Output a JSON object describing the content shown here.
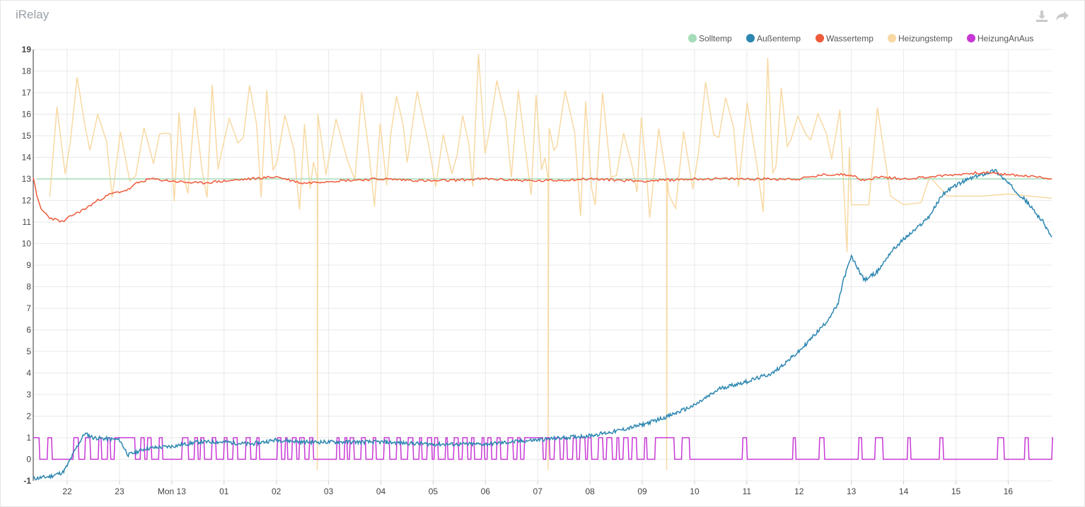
{
  "panel": {
    "title": "iRelay"
  },
  "toolbar": {
    "download_icon": "download-icon",
    "share_icon": "share-icon"
  },
  "colors": {
    "Solltemp": "#a6dcb9",
    "Außentemp": "#2b86b0",
    "Wassertemp": "#ee5a3a",
    "Heizungstemp": "#f8d9a3",
    "HeizungAnAus": "#c838d6",
    "grid": "#e9e9e9",
    "axis": "#000000"
  },
  "chart_data": {
    "type": "line",
    "title": "iRelay",
    "xlabel": "",
    "ylabel": "",
    "ylim": [
      -1,
      19
    ],
    "yticks": [
      "-1",
      "0",
      "1",
      "2",
      "3",
      "4",
      "5",
      "6",
      "7",
      "8",
      "9",
      "10",
      "11",
      "12",
      "13",
      "14",
      "15",
      "16",
      "17",
      "18",
      "19"
    ],
    "xlim": [
      "21:21",
      "16:50"
    ],
    "xticks": [
      "22",
      "23",
      "Mon 13",
      "01",
      "02",
      "03",
      "04",
      "05",
      "06",
      "07",
      "08",
      "09",
      "10",
      "11",
      "12",
      "13",
      "14",
      "15",
      "16"
    ],
    "grid": true,
    "legend_position": "top-right",
    "series": [
      {
        "name": "Solltemp",
        "x": [
          "21:25",
          "16:50"
        ],
        "values": [
          13,
          13
        ]
      },
      {
        "name": "Außentemp",
        "x": [
          "21:21",
          "21:40",
          "21:55",
          "22:00",
          "22:10",
          "22:20",
          "22:30",
          "23:00",
          "23:10",
          "23:30",
          "00:00",
          "00:30",
          "01:00",
          "01:30",
          "02:00",
          "02:30",
          "03:00",
          "04:00",
          "05:00",
          "06:00",
          "06:30",
          "07:00",
          "07:30",
          "08:00",
          "08:30",
          "09:00",
          "09:30",
          "10:00",
          "10:30",
          "11:00",
          "11:30",
          "12:00",
          "12:30",
          "12:45",
          "12:50",
          "13:00",
          "13:15",
          "13:30",
          "13:45",
          "14:00",
          "14:15",
          "14:30",
          "14:45",
          "15:00",
          "15:15",
          "15:30",
          "15:45",
          "16:00",
          "16:20",
          "16:40",
          "16:50"
        ],
        "values": [
          -0.9,
          -0.8,
          -0.6,
          -0.3,
          0.5,
          1.2,
          1.0,
          0.9,
          0.2,
          0.5,
          0.6,
          0.8,
          0.8,
          0.7,
          0.9,
          0.8,
          0.8,
          0.8,
          0.7,
          0.7,
          0.8,
          0.9,
          1.0,
          1.1,
          1.3,
          1.6,
          2.0,
          2.5,
          3.3,
          3.6,
          4.0,
          5.0,
          6.3,
          7.2,
          8.2,
          9.4,
          8.3,
          8.7,
          9.6,
          10.2,
          10.7,
          11.3,
          12.3,
          12.7,
          13.0,
          13.2,
          13.4,
          12.8,
          12.0,
          11.0,
          10.3
        ]
      },
      {
        "name": "Wassertemp",
        "x": [
          "21:21",
          "21:25",
          "21:30",
          "21:40",
          "21:55",
          "22:05",
          "22:20",
          "22:35",
          "22:50",
          "23:10",
          "23:20",
          "23:35",
          "00:00",
          "00:30",
          "01:00",
          "01:30",
          "02:00",
          "02:30",
          "03:00",
          "04:00",
          "05:00",
          "06:00",
          "07:00",
          "08:00",
          "09:00",
          "10:00",
          "11:00",
          "12:00",
          "12:30",
          "13:00",
          "13:15",
          "13:30",
          "14:00",
          "14:30",
          "15:00",
          "15:30",
          "16:00",
          "16:30",
          "16:50"
        ],
        "values": [
          13.1,
          12.2,
          11.6,
          11.2,
          11.0,
          11.3,
          11.6,
          12.0,
          12.3,
          12.5,
          12.8,
          13.0,
          12.9,
          12.8,
          12.9,
          13.0,
          13.1,
          12.8,
          12.9,
          13.0,
          12.9,
          13.0,
          12.9,
          13.0,
          12.9,
          13.0,
          13.0,
          13.0,
          13.2,
          13.2,
          12.9,
          13.1,
          13.0,
          13.1,
          13.2,
          13.3,
          13.2,
          13.1,
          13.0
        ]
      },
      {
        "name": "Heizungstemp",
        "values": "sawtooth oscillating between about 11.2 and 18.9 from 21:40 to 12:50; about 11.8 from 13:00 to 13:20; a peak of 16.3 near 13:30; about 12.0 to 12.3 from 14:20 to 16:50; drops to about -0.5 near 02:47, 07:12 and 09:28"
      },
      {
        "name": "HeizungAnAus",
        "values": "toggling between 0 and 1; dense switching from 21:21 to 09:40, then sparse pulses from 10:00 to 16:50"
      }
    ]
  }
}
